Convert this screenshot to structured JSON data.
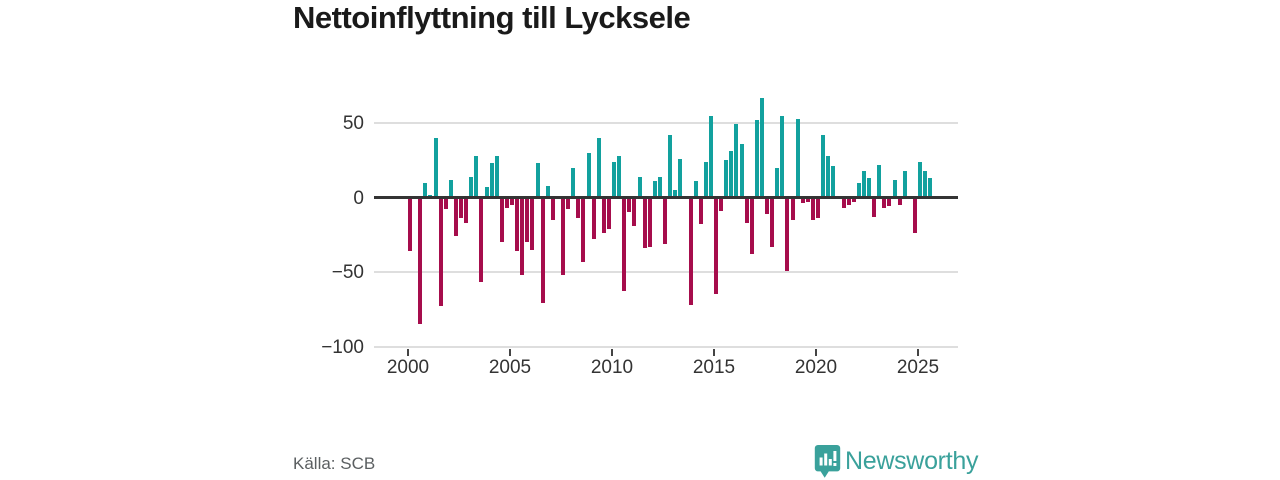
{
  "header": {
    "title": "Nettoinflyttning till Lycksele"
  },
  "footer": {
    "source": "Källa: SCB",
    "brand": "Newsworthy"
  },
  "colors": {
    "positive_bar": "#12a19e",
    "negative_bar": "#a60d4c",
    "zero_line": "#343434",
    "gridline": "#dedede",
    "axis_text": "#333333",
    "title_text": "#1a1a1a",
    "source_text": "#5b5f61",
    "brand_teal": "#3aa19b"
  },
  "chart_data": {
    "type": "bar",
    "title": "Nettoinflyttning till Lycksele",
    "xlabel": "",
    "ylabel": "",
    "x_unit": "quarter",
    "start": "2000-Q1",
    "end": "2025-Q3",
    "per_year": 4,
    "start_year": 2000,
    "x_tick_years": [
      2000,
      2005,
      2010,
      2015,
      2020,
      2025
    ],
    "y_ticks": [
      50,
      0,
      -50,
      -100
    ],
    "y_tick_labels": [
      "50",
      "0",
      "−50",
      "−100"
    ],
    "ylim": [
      -100,
      72
    ],
    "grid": "horizontal",
    "legend": "none",
    "series": [
      {
        "name": "Nettoinflyttning",
        "values": [
          -36,
          0,
          -85,
          10,
          2,
          40,
          -73,
          -8,
          12,
          -26,
          -14,
          -17,
          14,
          28,
          -57,
          7,
          23,
          28,
          -30,
          -7,
          -5,
          -36,
          -52,
          -30,
          -35,
          23,
          -71,
          8,
          -15,
          0,
          -52,
          -8,
          20,
          -14,
          -43,
          30,
          -28,
          40,
          -24,
          -21,
          24,
          28,
          -63,
          -10,
          -19,
          14,
          -34,
          -33,
          11,
          14,
          -31,
          42,
          5,
          26,
          0,
          -72,
          11,
          -18,
          24,
          55,
          -65,
          -9,
          25,
          31,
          49,
          36,
          -17,
          -38,
          52,
          67,
          -11,
          -33,
          20,
          55,
          -49,
          -15,
          53,
          -4,
          -3,
          -15,
          -14,
          42,
          28,
          21,
          0,
          -7,
          -5,
          -3,
          10,
          18,
          13,
          -13,
          22,
          -7,
          -6,
          12,
          -5,
          18,
          0,
          -24,
          24,
          18,
          13
        ]
      }
    ]
  }
}
